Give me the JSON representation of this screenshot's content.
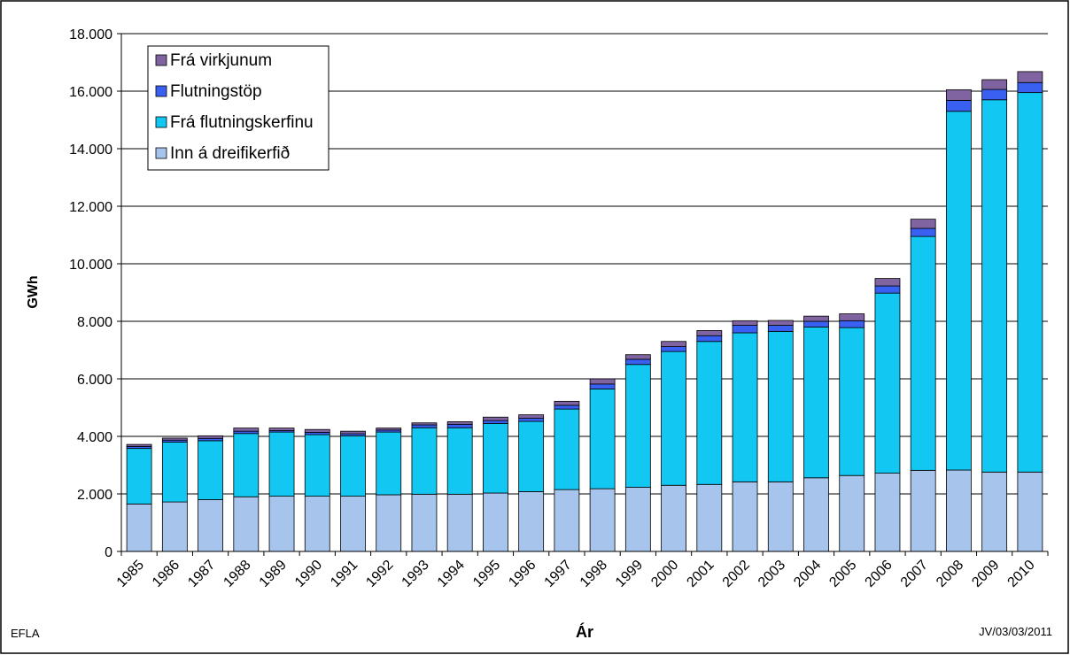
{
  "chart_data": {
    "type": "stacked_bar",
    "categories": [
      "1985",
      "1986",
      "1987",
      "1988",
      "1989",
      "1990",
      "1991",
      "1992",
      "1993",
      "1994",
      "1995",
      "1996",
      "1997",
      "1998",
      "1999",
      "2000",
      "2001",
      "2002",
      "2003",
      "2004",
      "2005",
      "2006",
      "2007",
      "2008",
      "2009",
      "2010"
    ],
    "series": [
      {
        "name": "Inn á dreifikerfið",
        "color": "#a6c4ec",
        "values": [
          1650,
          1720,
          1800,
          1900,
          1920,
          1920,
          1920,
          1970,
          1990,
          1990,
          2030,
          2080,
          2150,
          2180,
          2230,
          2300,
          2330,
          2420,
          2420,
          2560,
          2640,
          2720,
          2820,
          2830,
          2760,
          2760
        ]
      },
      {
        "name": "Frá flutningskerfinu",
        "color": "#12c8f2",
        "values": [
          1930,
          2080,
          2050,
          2200,
          2230,
          2140,
          2100,
          2180,
          2310,
          2310,
          2420,
          2440,
          2800,
          3470,
          4270,
          4650,
          4970,
          5180,
          5230,
          5240,
          5140,
          6260,
          8130,
          12470,
          12940,
          13190
        ]
      },
      {
        "name": "Flutningstöp",
        "color": "#3960f0",
        "values": [
          70,
          70,
          80,
          80,
          50,
          80,
          70,
          70,
          100,
          120,
          100,
          110,
          130,
          170,
          180,
          170,
          200,
          260,
          210,
          200,
          240,
          250,
          280,
          380,
          360,
          350
        ]
      },
      {
        "name": "Frá virkjunum",
        "color": "#8064a2",
        "values": [
          70,
          70,
          90,
          110,
          90,
          100,
          90,
          70,
          70,
          90,
          120,
          120,
          140,
          180,
          160,
          180,
          180,
          160,
          170,
          180,
          240,
          260,
          320,
          370,
          340,
          380
        ]
      }
    ],
    "ylabel": "GWh",
    "xlabel": "Ár",
    "ylim": [
      0,
      18000
    ],
    "yticks": [
      0,
      {
        "value": 2000,
        "label": "2.000"
      },
      {
        "value": 4000,
        "label": "4.000"
      },
      {
        "value": 6000,
        "label": "6.000"
      },
      {
        "value": 8000,
        "label": "8.000"
      },
      {
        "value": 10000,
        "label": "10.000"
      },
      {
        "value": 12000,
        "label": "12.000"
      },
      {
        "value": 14000,
        "label": "14.000"
      },
      {
        "value": 16000,
        "label": "16.000"
      },
      {
        "value": 18000,
        "label": "18.000"
      }
    ],
    "grid": true,
    "legend": "upper left",
    "source": "EFLA",
    "note": "JV/03/03/2011"
  }
}
